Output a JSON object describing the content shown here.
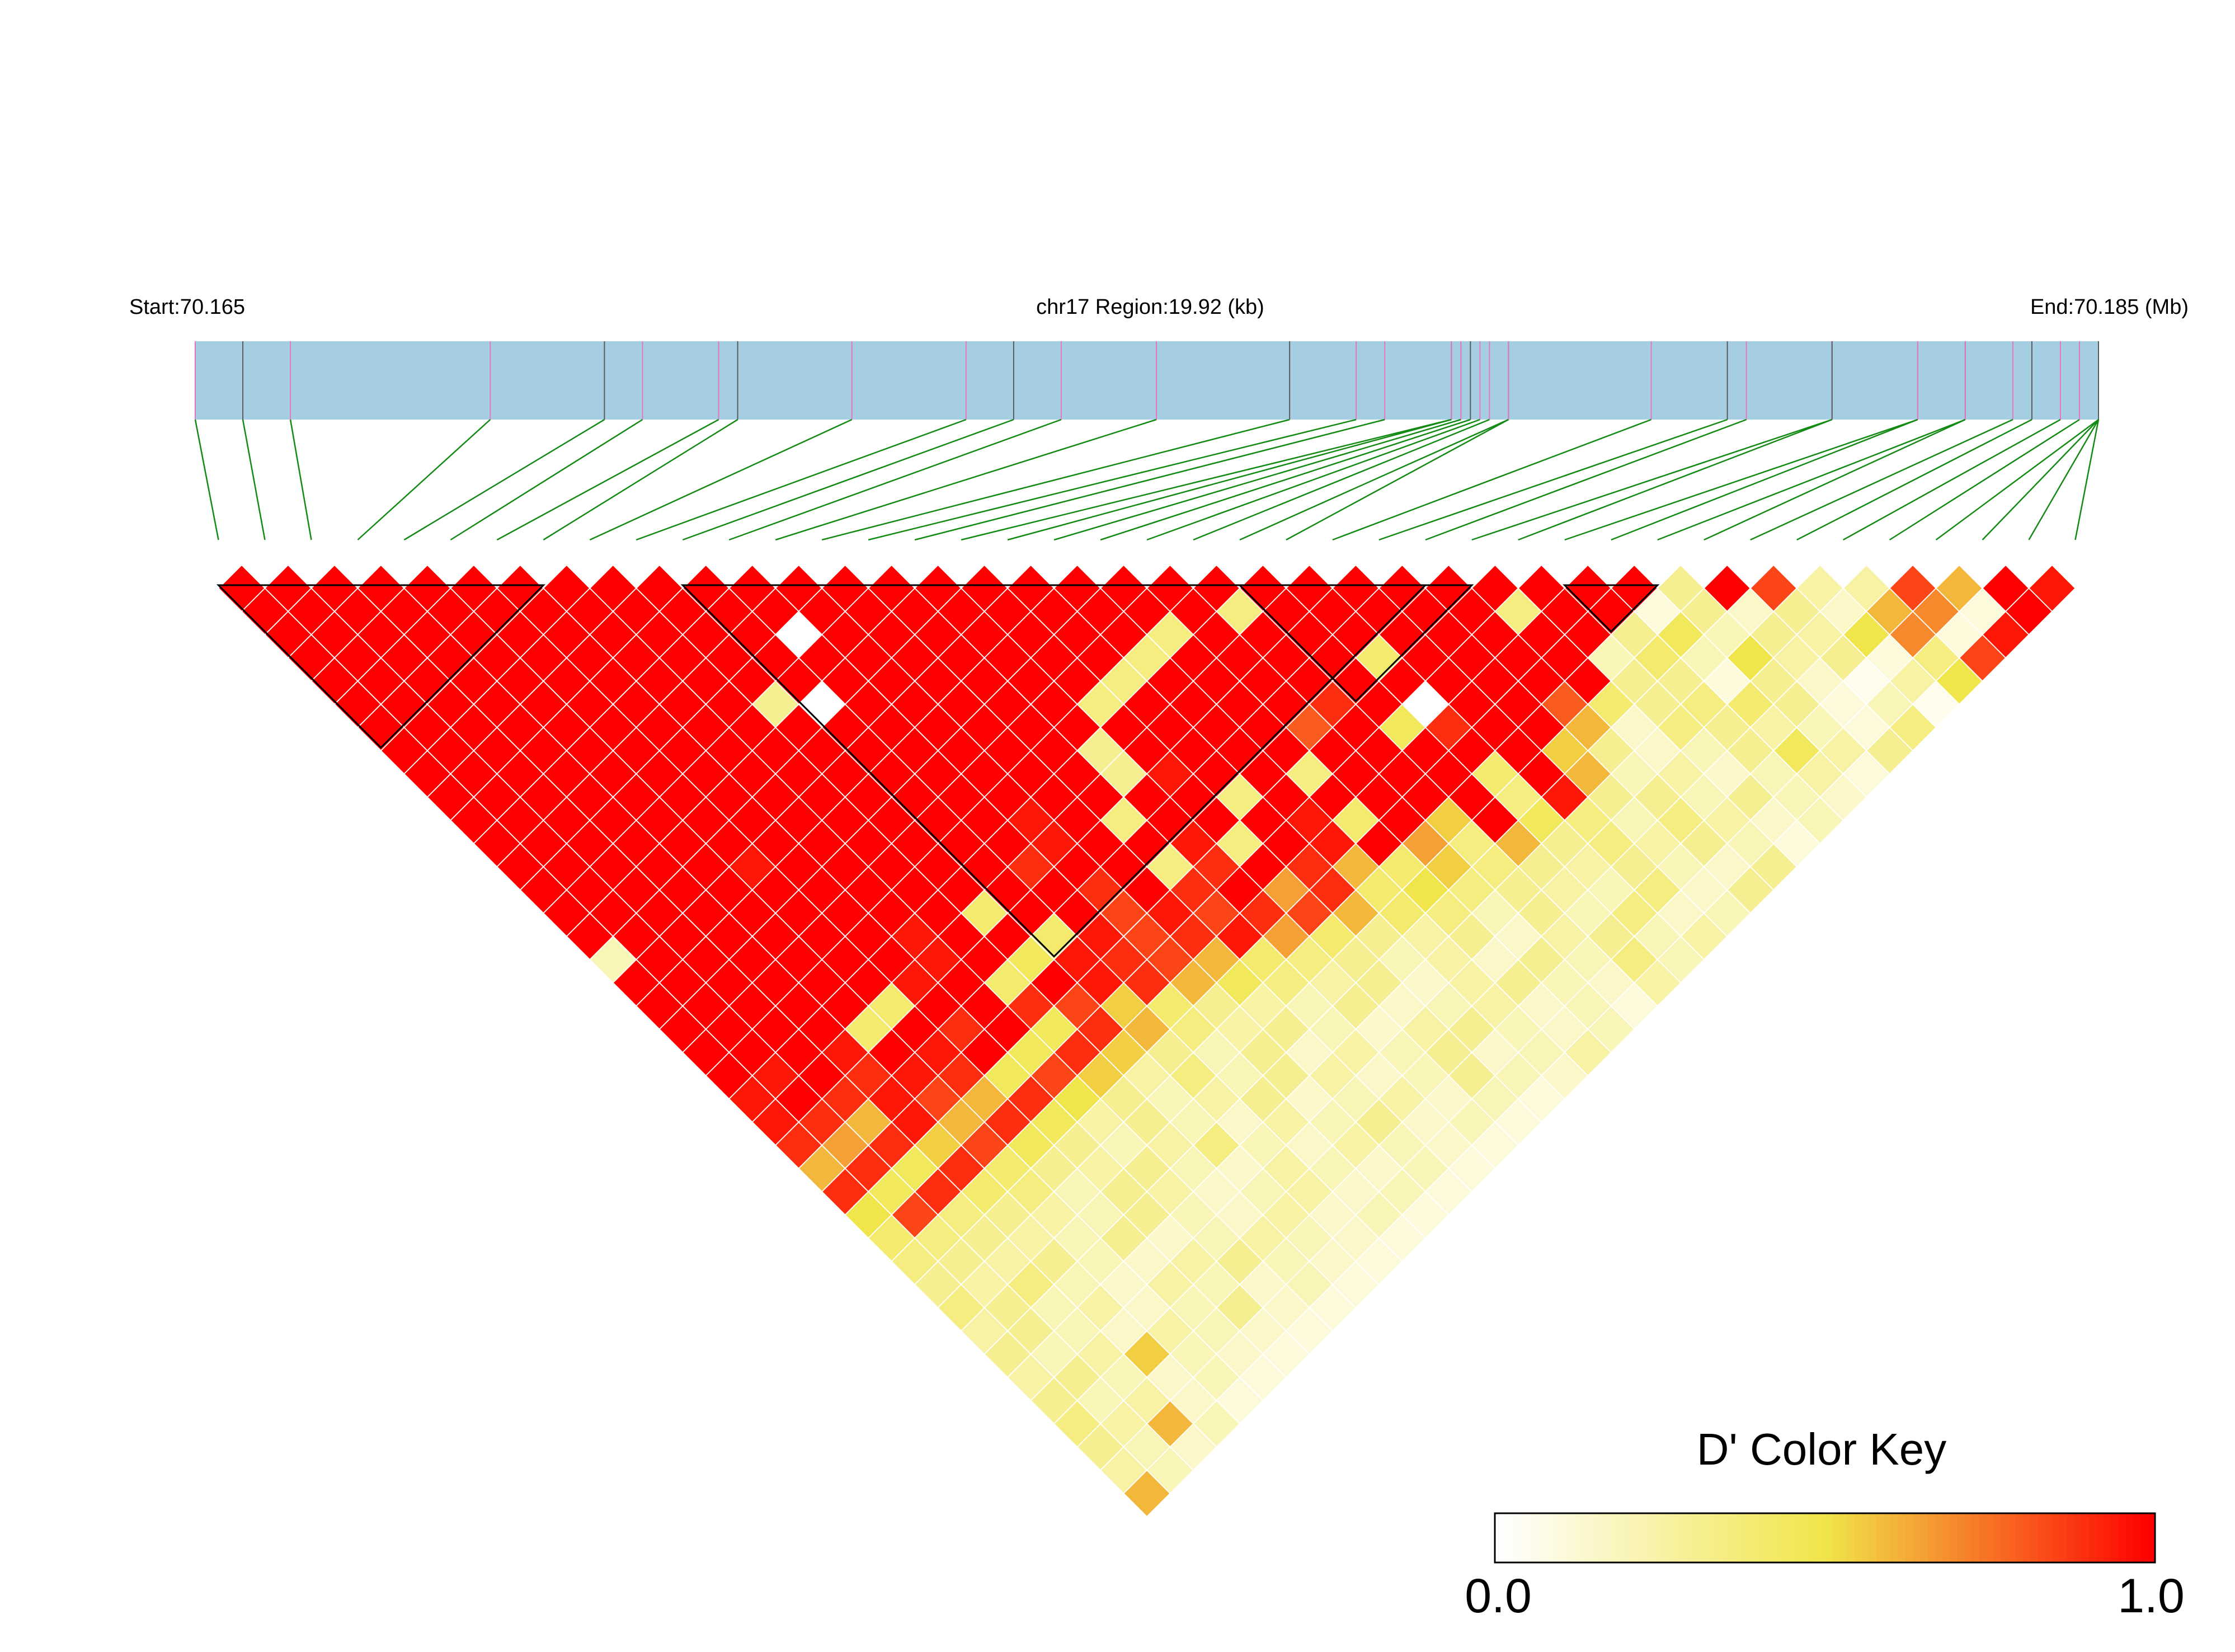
{
  "header": {
    "start_label": "Start:70.165",
    "region_label": "chr17 Region:19.92 (kb)",
    "end_label": "End:70.185 (Mb)"
  },
  "colors": {
    "track_fill": "#a6cee3",
    "snp_tick_pink": "#e377c2",
    "snp_tick_dark": "#5a5a5a",
    "connector_green": "#138a13",
    "block_outline": "#000000",
    "scale_low": "#ffffff",
    "scale_mid": "#f0e54a",
    "scale_high": "#ff0000"
  },
  "chart_data": {
    "type": "heatmap",
    "measure": "D'",
    "chromosome": "chr17",
    "start_mb": 70.165,
    "end_mb": 70.185,
    "region_kb": 19.92,
    "snp_count": 41,
    "snp_positions_mb": [
      70.165,
      70.1655,
      70.166,
      70.1681,
      70.1693,
      70.1697,
      70.1705,
      70.1707,
      70.1719,
      70.1731,
      70.1736,
      70.1741,
      70.1751,
      70.1765,
      70.1772,
      70.1775,
      70.1782,
      70.1782,
      70.1783,
      70.1784,
      70.1785,
      70.1786,
      70.1788,
      70.1788,
      70.1803,
      70.1811,
      70.1813,
      70.1822,
      70.1822,
      70.1831,
      70.1831,
      70.1836,
      70.1836,
      70.1841,
      70.1843,
      70.1846,
      70.1848,
      70.185,
      70.185,
      70.185,
      70.185
    ],
    "ld_blocks": [
      [
        0,
        7
      ],
      [
        10,
        26
      ],
      [
        22,
        27
      ],
      [
        29,
        31
      ]
    ],
    "row_values": [
      [
        1,
        1,
        1,
        1,
        1,
        1,
        1,
        1,
        1,
        1,
        1,
        1,
        1,
        1,
        1,
        1,
        1,
        1,
        1,
        1,
        1,
        1,
        1,
        1,
        1,
        1,
        1,
        1,
        1,
        1,
        1,
        0.3,
        1,
        0.85,
        0.25,
        0.25,
        0.85,
        0.6,
        1,
        0.95
      ],
      [
        1,
        1,
        1,
        1,
        1,
        1,
        1,
        1,
        1,
        1,
        1,
        1,
        1,
        1,
        1,
        1,
        1,
        1,
        1,
        1,
        1,
        0.35,
        1,
        1,
        1,
        1,
        1,
        0.35,
        1,
        1,
        0.1,
        0.3,
        0.15,
        0.3,
        0.15,
        0.6,
        0.7,
        0.1,
        1
      ],
      [
        1,
        1,
        1,
        1,
        1,
        1,
        1,
        1,
        1,
        1,
        1,
        0,
        1,
        1,
        1,
        1,
        1,
        1,
        1,
        0.35,
        1,
        1,
        1,
        1,
        1,
        1,
        1,
        1,
        1,
        0.3,
        0.45,
        0.2,
        0.3,
        0.25,
        0.5,
        0.7,
        0.1,
        0.95
      ],
      [
        1,
        1,
        1,
        1,
        1,
        1,
        1,
        1,
        1,
        1,
        1,
        1,
        1,
        1,
        1,
        1,
        1,
        1,
        0.35,
        1,
        1,
        1,
        1,
        0.4,
        1,
        1,
        1,
        1,
        0.2,
        0.4,
        0.2,
        0.5,
        0.25,
        0.3,
        0.1,
        0.35,
        0.85
      ],
      [
        1,
        1,
        1,
        1,
        1,
        1,
        1,
        1,
        1,
        1,
        1,
        1,
        1,
        1,
        1,
        1,
        1,
        0.35,
        1,
        1,
        1,
        1,
        1,
        1,
        1,
        1,
        1,
        1,
        0.3,
        0.3,
        0.1,
        0.3,
        0.15,
        0.05,
        0.25,
        0.5
      ],
      [
        1,
        1,
        1,
        1,
        1,
        1,
        1,
        1,
        1,
        0.3,
        0,
        1,
        1,
        1,
        1,
        1,
        0.35,
        1,
        1,
        1,
        1,
        0.9,
        1,
        0,
        1,
        1,
        0.8,
        0.4,
        0.3,
        0.35,
        0.4,
        0.3,
        0.1,
        0.2,
        0.05
      ],
      [
        1,
        1,
        1,
        1,
        1,
        1,
        1,
        1,
        1,
        1,
        1,
        1,
        1,
        1,
        1,
        1,
        1,
        1,
        1,
        1,
        0.8,
        1,
        0.45,
        0.9,
        1,
        1,
        0.6,
        0.15,
        0.35,
        0.3,
        0.25,
        0.2,
        0.1,
        0.35
      ],
      [
        1,
        1,
        1,
        1,
        1,
        1,
        1,
        1,
        1,
        1,
        1,
        1,
        1,
        1,
        1,
        0.3,
        1,
        1,
        1,
        1,
        1,
        1,
        1,
        1,
        1,
        0.55,
        0.3,
        0.15,
        0.2,
        0.3,
        0.45,
        0.25,
        0.3
      ],
      [
        1,
        1,
        1,
        1,
        1,
        1,
        1,
        1,
        1,
        1,
        1,
        1,
        1,
        1,
        1,
        0.3,
        0.95,
        1,
        1,
        0.35,
        1,
        1,
        1,
        0.4,
        1,
        0.6,
        0.2,
        0.25,
        0.15,
        0.2,
        0.25,
        0.1
      ],
      [
        1,
        1,
        1,
        1,
        1,
        1,
        1,
        1,
        1,
        1,
        1,
        1,
        1,
        1,
        1,
        1,
        1,
        0.35,
        1,
        1,
        1,
        1,
        1,
        0.35,
        0.95,
        0.3,
        0.3,
        0.2,
        0.3,
        0.2,
        0.15
      ],
      [
        1,
        1,
        1,
        1,
        1,
        1,
        1,
        1,
        1,
        1,
        1,
        1,
        0.95,
        1,
        0.35,
        1,
        1,
        1,
        0.95,
        0.4,
        1,
        0.55,
        1,
        0.45,
        0.35,
        0.2,
        0.35,
        0.25,
        0.15,
        0.2
      ],
      [
        1,
        1,
        1,
        1,
        1,
        1,
        1,
        1,
        1,
        1,
        1,
        1,
        0.95,
        1,
        1,
        0.95,
        0.35,
        1,
        0.95,
        1,
        0.65,
        0.35,
        0.6,
        0.3,
        0.35,
        0.25,
        0.3,
        0.2,
        0.1
      ],
      [
        1,
        1,
        1,
        1,
        1,
        0.95,
        1,
        1,
        1,
        1,
        1,
        0.9,
        1,
        1,
        0.35,
        0.9,
        1,
        0.9,
        0.6,
        0.4,
        0.55,
        0.35,
        0.3,
        0.25,
        0.3,
        0.2,
        0.15,
        0.3
      ],
      [
        1,
        1,
        1,
        1,
        1,
        1,
        1,
        1,
        1,
        1,
        1,
        1,
        0.9,
        1,
        0.9,
        1,
        0.65,
        0.9,
        0.4,
        0.5,
        0.35,
        0.3,
        0.25,
        0.2,
        0.35,
        0.15,
        0.3
      ],
      [
        1,
        1,
        1,
        1,
        1,
        1,
        1,
        1,
        1,
        0.4,
        1,
        1,
        0.85,
        0.95,
        0.85,
        0.9,
        0.85,
        0.6,
        0.4,
        0.35,
        0.2,
        0.3,
        0.2,
        0.35,
        0.15,
        0.2
      ],
      [
        1,
        1,
        1,
        1,
        1,
        1,
        1,
        0.95,
        1,
        1,
        0.4,
        0.95,
        0.85,
        0.9,
        0.95,
        0.65,
        0.4,
        0.3,
        0.25,
        0.3,
        0.15,
        0.25,
        0.3,
        0.2,
        0.25
      ],
      [
        0.2,
        1,
        1,
        1,
        1,
        1,
        1,
        0.95,
        1,
        0.45,
        0.95,
        0.9,
        0.85,
        0.6,
        0.4,
        0.35,
        0.3,
        0.2,
        0.25,
        0.15,
        0.3,
        0.2,
        0.35,
        0.2
      ],
      [
        1,
        1,
        1,
        1,
        1,
        1,
        0.95,
        1,
        0.4,
        1,
        0.95,
        0.9,
        0.6,
        0.45,
        0.35,
        0.25,
        0.3,
        0.15,
        0.25,
        0.3,
        0.2,
        0.15,
        0.25
      ],
      [
        1,
        1,
        1,
        1,
        1,
        0.4,
        1,
        1,
        0.9,
        0.85,
        0.55,
        0.4,
        0.3,
        0.25,
        0.2,
        0.3,
        0.15,
        0.2,
        0.25,
        0.15,
        0.2,
        0.1
      ],
      [
        1,
        1,
        1,
        1,
        0.4,
        1,
        0.9,
        1,
        0.45,
        0.9,
        0.6,
        0.35,
        0.25,
        0.3,
        0.2,
        0.15,
        0.25,
        0.3,
        0.2,
        0.15,
        0.2
      ],
      [
        1,
        1,
        1,
        0.95,
        1,
        0.95,
        1,
        0.45,
        0.9,
        0.55,
        0.3,
        0.2,
        0.3,
        0.15,
        0.25,
        0.2,
        0.3,
        0.15,
        0.2,
        0.25
      ],
      [
        1,
        0.95,
        1,
        0.9,
        0.95,
        0.9,
        0.45,
        0.85,
        0.55,
        0.25,
        0.35,
        0.2,
        0.3,
        0.25,
        0.15,
        0.2,
        0.3,
        0.2,
        0.15
      ],
      [
        0.95,
        1,
        0.9,
        0.95,
        0.85,
        0.6,
        0.9,
        0.5,
        0.3,
        0.2,
        0.25,
        0.3,
        0.15,
        0.2,
        0.25,
        0.15,
        0.2,
        0.1
      ],
      [
        0.95,
        0.9,
        0.6,
        0.95,
        0.6,
        0.9,
        0.45,
        0.25,
        0.3,
        0.2,
        0.15,
        0.25,
        0.2,
        0.3,
        0.15,
        0.2,
        0.1
      ],
      [
        0.9,
        0.65,
        0.9,
        0.55,
        0.85,
        0.45,
        0.3,
        0.2,
        0.25,
        0.35,
        0.2,
        0.15,
        0.25,
        0.2,
        0.15,
        0.1
      ],
      [
        0.6,
        0.9,
        0.45,
        0.9,
        0.4,
        0.3,
        0.25,
        0.3,
        0.2,
        0.15,
        0.25,
        0.2,
        0.15,
        0.2,
        0.1
      ],
      [
        0.9,
        0.45,
        0.9,
        0.4,
        0.35,
        0.2,
        0.3,
        0.25,
        0.15,
        0.2,
        0.25,
        0.15,
        0.2,
        0.1
      ],
      [
        0.5,
        0.85,
        0.35,
        0.3,
        0.25,
        0.2,
        0.3,
        0.2,
        0.15,
        0.25,
        0.15,
        0.2,
        0.1
      ],
      [
        0.4,
        0.35,
        0.3,
        0.25,
        0.2,
        0.3,
        0.15,
        0.2,
        0.25,
        0.2,
        0.15,
        0.1
      ],
      [
        0.35,
        0.3,
        0.25,
        0.3,
        0.2,
        0.15,
        0.25,
        0.3,
        0.2,
        0.15,
        0.1
      ],
      [
        0.3,
        0.25,
        0.35,
        0.2,
        0.15,
        0.25,
        0.2,
        0.15,
        0.2,
        0.1
      ],
      [
        0.35,
        0.3,
        0.2,
        0.25,
        0.15,
        0.2,
        0.3,
        0.15,
        0.1
      ],
      [
        0.25,
        0.3,
        0.2,
        0.15,
        0.25,
        0.2,
        0.15,
        0.1
      ],
      [
        0.3,
        0.2,
        0.25,
        0.55,
        0.2,
        0.15,
        0.1
      ],
      [
        0.25,
        0.3,
        0.2,
        0.15,
        0.2,
        0.1
      ],
      [
        0.3,
        0.2,
        0.25,
        0.15,
        0.1
      ],
      [
        0.35,
        0.25,
        0.6,
        0.2
      ],
      [
        0.3,
        0.2,
        0.15
      ],
      [
        0.25,
        0.2
      ],
      [
        0.6
      ]
    ],
    "color_key": {
      "title": "D' Color Key",
      "min_label": "0.0",
      "max_label": "1.0",
      "min": 0.0,
      "max": 1.0
    }
  }
}
